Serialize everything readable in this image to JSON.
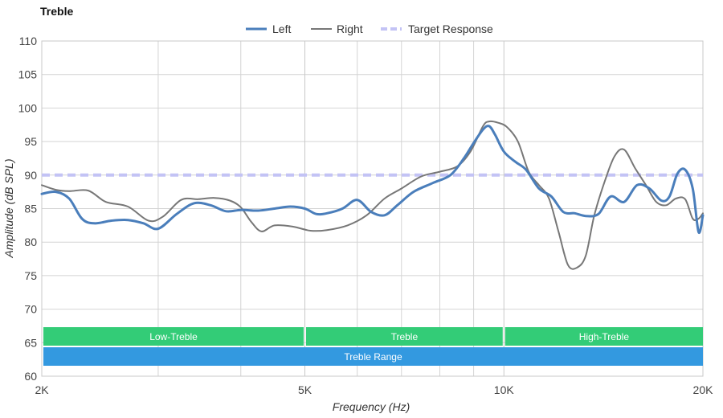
{
  "chart_data": {
    "type": "line",
    "title": "Treble",
    "xlabel": "Frequency (Hz)",
    "ylabel": "Amplitude (dB SPL)",
    "x_scale": "log",
    "xlim": [
      2000,
      20000
    ],
    "ylim": [
      60,
      110
    ],
    "x_ticks": [
      {
        "value": 2000,
        "label": "2K"
      },
      {
        "value": 5000,
        "label": "5K"
      },
      {
        "value": 10000,
        "label": "10K"
      },
      {
        "value": 20000,
        "label": "20K"
      }
    ],
    "x_minor_gridlines": [
      3000,
      4000,
      6000,
      7000,
      8000,
      9000
    ],
    "y_ticks": [
      60,
      65,
      70,
      75,
      80,
      85,
      90,
      95,
      100,
      105,
      110
    ],
    "grid": true,
    "legend_position": "top-center",
    "series": [
      {
        "name": "Left",
        "color": "#4a7ebb",
        "style": "solid-thick",
        "x": [
          2000,
          2100,
          2200,
          2300,
          2400,
          2550,
          2700,
          2850,
          3000,
          3200,
          3400,
          3600,
          3800,
          4000,
          4250,
          4500,
          4750,
          5000,
          5200,
          5400,
          5700,
          6000,
          6300,
          6600,
          6900,
          7300,
          7800,
          8300,
          8700,
          9000,
          9300,
          9500,
          9700,
          10000,
          10400,
          10800,
          11300,
          11800,
          12300,
          12800,
          13300,
          13900,
          14500,
          15200,
          15900,
          16600,
          17300,
          17800,
          18300,
          18800,
          19300,
          19700,
          20000
        ],
        "values": [
          87.2,
          87.5,
          86.5,
          83.5,
          82.8,
          83.2,
          83.3,
          82.8,
          82.0,
          84.2,
          85.8,
          85.5,
          84.6,
          84.8,
          84.7,
          85.0,
          85.3,
          85.0,
          84.2,
          84.3,
          85.0,
          86.3,
          84.5,
          84.0,
          85.5,
          87.5,
          88.8,
          90.0,
          92.5,
          94.8,
          96.8,
          97.3,
          96.0,
          93.5,
          92.0,
          90.8,
          88.0,
          86.8,
          84.5,
          84.3,
          83.9,
          84.2,
          86.8,
          86.0,
          88.5,
          88.0,
          86.2,
          86.8,
          90.2,
          90.8,
          88.0,
          81.5,
          84.0
        ]
      },
      {
        "name": "Right",
        "color": "#777777",
        "style": "solid-thin",
        "x": [
          2000,
          2100,
          2200,
          2350,
          2500,
          2700,
          2900,
          3050,
          3250,
          3450,
          3650,
          3850,
          4000,
          4150,
          4300,
          4500,
          4800,
          5100,
          5400,
          5800,
          6200,
          6600,
          7000,
          7500,
          8000,
          8500,
          8900,
          9300,
          9500,
          9800,
          10100,
          10500,
          10900,
          11300,
          11700,
          12100,
          12500,
          12900,
          13300,
          13700,
          14200,
          14700,
          15200,
          15800,
          16400,
          17000,
          17600,
          18200,
          18800,
          19300,
          19700,
          20000
        ],
        "values": [
          88.5,
          87.8,
          87.6,
          87.7,
          86.0,
          85.3,
          83.2,
          83.8,
          86.3,
          86.4,
          86.6,
          86.2,
          85.2,
          83.0,
          81.6,
          82.5,
          82.3,
          81.7,
          81.8,
          82.5,
          84.0,
          86.5,
          88.0,
          89.8,
          90.5,
          91.3,
          93.5,
          97.3,
          98.0,
          97.8,
          97.2,
          95.0,
          90.5,
          88.5,
          86.5,
          81.5,
          76.6,
          76.2,
          78.0,
          84.0,
          89.0,
          92.8,
          93.8,
          91.0,
          88.5,
          86.0,
          85.5,
          86.5,
          86.4,
          83.5,
          83.5,
          84.3
        ]
      },
      {
        "name": "Target Response",
        "color": "#c3c3f5",
        "style": "dashed",
        "x": [
          2000,
          20000
        ],
        "values": [
          90,
          90
        ]
      }
    ],
    "bands": [
      {
        "label": "Low-Treble",
        "from": 2000,
        "to": 5000,
        "color": "#33cc77",
        "row": 1
      },
      {
        "label": "Treble",
        "from": 5000,
        "to": 10000,
        "color": "#33cc77",
        "row": 1
      },
      {
        "label": "High-Treble",
        "from": 10000,
        "to": 20000,
        "color": "#33cc77",
        "row": 1
      },
      {
        "label": "Treble Range",
        "from": 2000,
        "to": 20000,
        "color": "#3399e0",
        "row": 2
      }
    ]
  }
}
